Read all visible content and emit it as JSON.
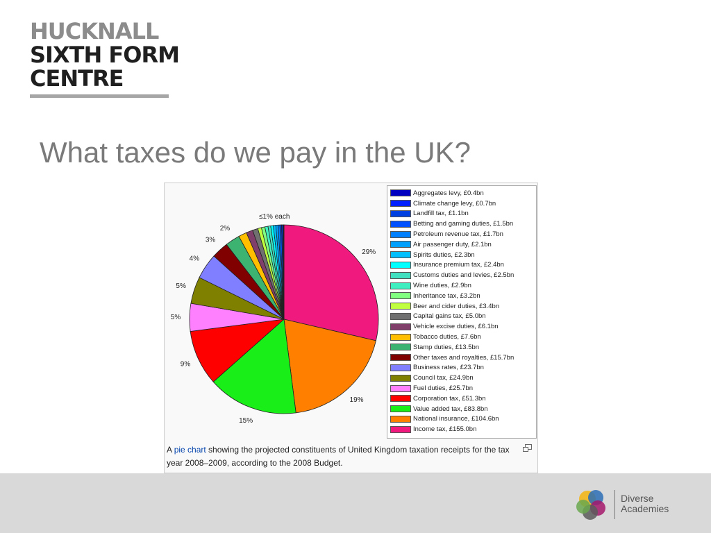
{
  "logo": {
    "line1": "HUCKNALL",
    "line2": "SIXTH FORM",
    "line3": "CENTRE"
  },
  "slide": {
    "title": "What taxes do we pay in the UK?"
  },
  "chart_data": {
    "type": "pie",
    "unit": "£bn",
    "slices": [
      {
        "label": "Income tax, £155.0bn",
        "value": 155.0,
        "color": "#f0197d"
      },
      {
        "label": "National insurance, £104.6bn",
        "value": 104.6,
        "color": "#ff8000"
      },
      {
        "label": "Value added tax, £83.8bn",
        "value": 83.8,
        "color": "#19ee19"
      },
      {
        "label": "Corporation tax, £51.3bn",
        "value": 51.3,
        "color": "#ff0000"
      },
      {
        "label": "Fuel duties, £25.7bn",
        "value": 25.7,
        "color": "#ff80ff"
      },
      {
        "label": "Council tax, £24.9bn",
        "value": 24.9,
        "color": "#808000"
      },
      {
        "label": "Business rates, £23.7bn",
        "value": 23.7,
        "color": "#7f7fff"
      },
      {
        "label": "Other taxes and royalties, £15.7bn",
        "value": 15.7,
        "color": "#800000"
      },
      {
        "label": "Stamp duties, £13.5bn",
        "value": 13.5,
        "color": "#3cb371"
      },
      {
        "label": "Tobacco duties, £7.6bn",
        "value": 7.6,
        "color": "#ffbf00"
      },
      {
        "label": "Vehicle excise duties, £6.1bn",
        "value": 6.1,
        "color": "#803f6b"
      },
      {
        "label": "Capital gains tax, £5.0bn",
        "value": 5.0,
        "color": "#707070"
      },
      {
        "label": "Beer and cider duties, £3.4bn",
        "value": 3.4,
        "color": "#bfff3f"
      },
      {
        "label": "Inheritance tax, £3.2bn",
        "value": 3.2,
        "color": "#80ff80"
      },
      {
        "label": "Wine duties, £2.9bn",
        "value": 2.9,
        "color": "#3fefbf"
      },
      {
        "label": "Customs duties and levies, £2.5bn",
        "value": 2.5,
        "color": "#40e0c0"
      },
      {
        "label": "Insurance premium tax, £2.4bn",
        "value": 2.4,
        "color": "#00ffff"
      },
      {
        "label": "Spirits duties, £2.3bn",
        "value": 2.3,
        "color": "#00bfff"
      },
      {
        "label": "Air passenger duty, £2.1bn",
        "value": 2.1,
        "color": "#00a0ff"
      },
      {
        "label": "Petroleum revenue tax, £1.7bn",
        "value": 1.7,
        "color": "#0080ff"
      },
      {
        "label": "Betting and gaming duties, £1.5bn",
        "value": 1.5,
        "color": "#0050ff"
      },
      {
        "label": "Landfill tax, £1.1bn",
        "value": 1.1,
        "color": "#0040e0"
      },
      {
        "label": "Climate change levy, £0.7bn",
        "value": 0.7,
        "color": "#0020ff"
      },
      {
        "label": "Aggregates levy, £0.4bn",
        "value": 0.4,
        "color": "#0000c0"
      }
    ],
    "percent_labels": [
      {
        "text": "29%",
        "slice": 0
      },
      {
        "text": "19%",
        "slice": 1
      },
      {
        "text": "15%",
        "slice": 2
      },
      {
        "text": "9%",
        "slice": 3
      },
      {
        "text": "5%",
        "slice": 4
      },
      {
        "text": "5%",
        "slice": 5
      },
      {
        "text": "4%",
        "slice": 6
      },
      {
        "text": "3%",
        "slice": 7
      },
      {
        "text": "2%",
        "slice": 8
      }
    ],
    "small_slices_label": "≤1% each",
    "legend_position": "right"
  },
  "caption": {
    "prefix": "A ",
    "link": "pie chart",
    "rest": " showing the projected constituents of United Kingdom taxation receipts for the tax year 2008–2009, according to the 2008 Budget."
  },
  "footer": {
    "brand_line1": "Diverse",
    "brand_line2": "Academies"
  }
}
